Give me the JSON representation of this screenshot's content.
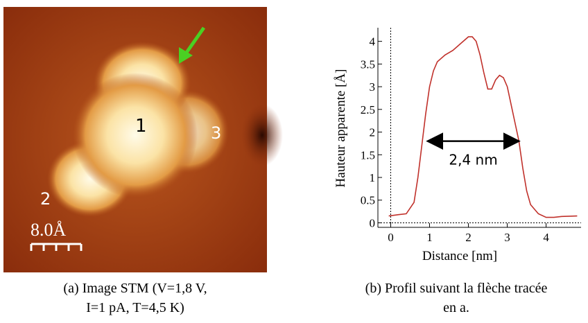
{
  "stm": {
    "labels": [
      "1",
      "2",
      "3"
    ],
    "scale": "8.0Å",
    "caption": [
      "(a) Image STM (V=1,8 V,",
      "I=1 pA, T=4,5 K)"
    ]
  },
  "chart_data": {
    "type": "line",
    "xlabel": "Distance [nm]",
    "ylabel": "Hauteur apparente [Å]",
    "caption": [
      "(b) Profil suivant la flèche tracée",
      "en a."
    ],
    "x": [
      -0.05,
      0.2,
      0.4,
      0.6,
      0.7,
      0.8,
      0.9,
      1.0,
      1.1,
      1.2,
      1.4,
      1.6,
      1.8,
      2.0,
      2.1,
      2.2,
      2.3,
      2.4,
      2.5,
      2.6,
      2.7,
      2.8,
      2.9,
      3.0,
      3.1,
      3.2,
      3.3,
      3.4,
      3.5,
      3.6,
      3.8,
      4.0,
      4.2,
      4.4,
      4.8
    ],
    "values": [
      0.15,
      0.18,
      0.2,
      0.45,
      1.0,
      1.7,
      2.4,
      3.0,
      3.35,
      3.55,
      3.7,
      3.8,
      3.95,
      4.1,
      4.1,
      4.0,
      3.7,
      3.3,
      2.95,
      2.95,
      3.15,
      3.25,
      3.2,
      3.0,
      2.6,
      2.2,
      1.8,
      1.2,
      0.7,
      0.4,
      0.2,
      0.12,
      0.12,
      0.14,
      0.15
    ],
    "color": "#c0302a",
    "xlim": [
      -0.33,
      4.9
    ],
    "ylim": [
      -0.1,
      4.3
    ],
    "xticks": [
      0,
      1,
      2,
      3,
      4
    ],
    "yticks": [
      0,
      0.5,
      1,
      1.5,
      2,
      2.5,
      3,
      3.5,
      4
    ],
    "annotation": {
      "text": "2,4 nm",
      "x": [
        0.95,
        3.3
      ],
      "y": 1.8
    }
  }
}
